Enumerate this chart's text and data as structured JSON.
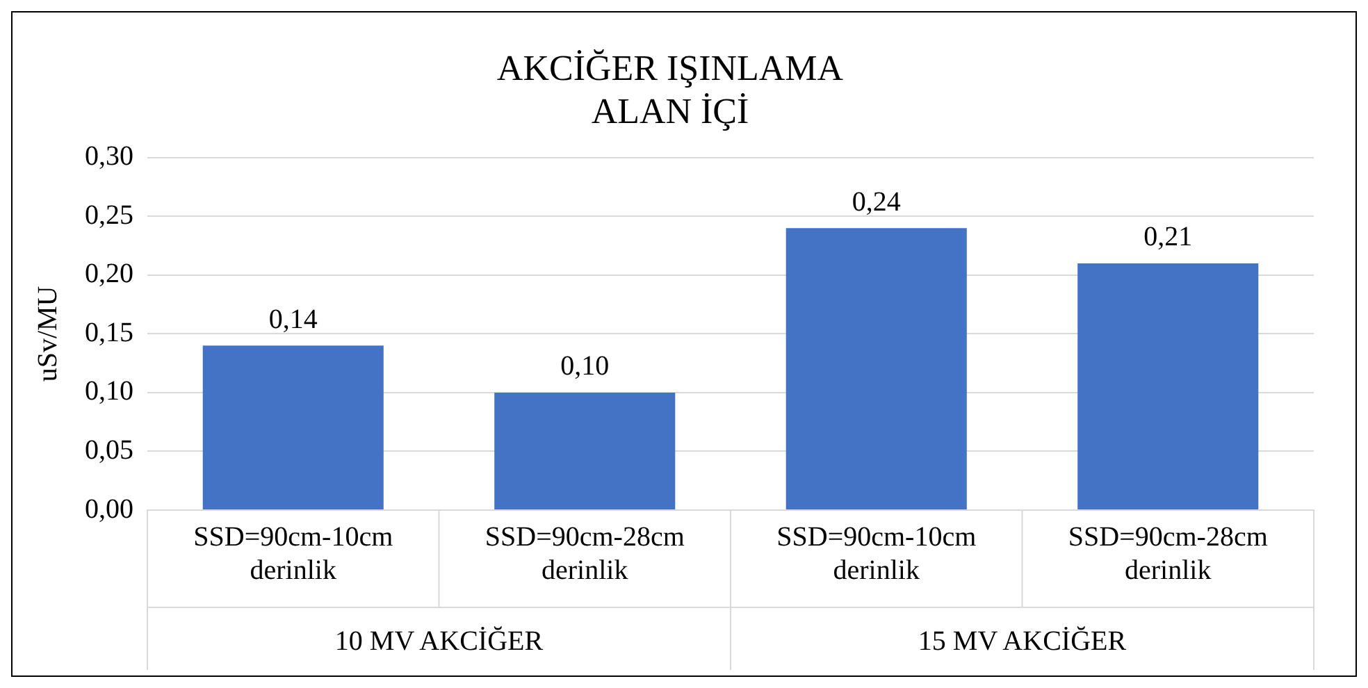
{
  "chart_data": {
    "type": "bar",
    "title": "AKCİĞER IŞINLAMA\nALAN İÇİ",
    "ylabel": "uSv/MU",
    "categories": [
      "SSD=90cm-10cm derinlik",
      "SSD=90cm-28cm derinlik",
      "SSD=90cm-10cm derinlik",
      "SSD=90cm-28cm derinlik"
    ],
    "values": [
      0.14,
      0.1,
      0.24,
      0.21
    ],
    "value_labels": [
      "0,14",
      "0,10",
      "0,24",
      "0,21"
    ],
    "color": "#4472c4",
    "ylim": [
      0,
      0.3
    ],
    "yticks": [
      {
        "value": 0,
        "label": "0,00"
      },
      {
        "value": 0.05,
        "label": "0,05"
      },
      {
        "value": 0.1,
        "label": "0,10"
      },
      {
        "value": 0.15,
        "label": "0,15"
      },
      {
        "value": 0.2,
        "label": "0,20"
      },
      {
        "value": 0.25,
        "label": "0,25"
      },
      {
        "value": 0.3,
        "label": "0,30"
      }
    ],
    "grid": "y",
    "legend": false,
    "annotations": [
      "10 MV AKCİĞER",
      "15 MV AKCİĞER"
    ]
  }
}
